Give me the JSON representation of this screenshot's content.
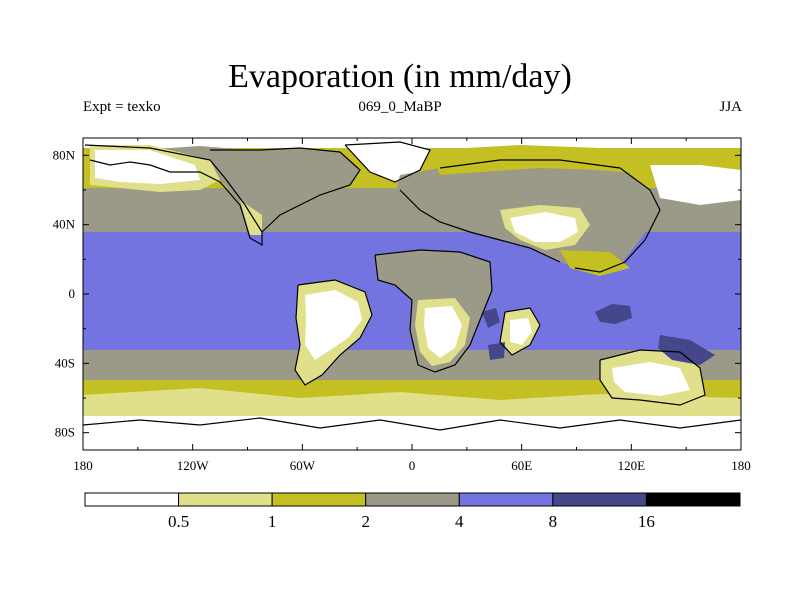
{
  "title": "Evaporation (in mm/day)",
  "subtitle_left": "Expt = texko",
  "subtitle_center": "069_0_MaBP",
  "subtitle_right": "JJA",
  "colors": {
    "lt05": "#ffffff",
    "b05_1": "#e0df8a",
    "b1_2": "#c4c024",
    "b2_4": "#9b9a89",
    "b4_8": "#7474e0",
    "b8_16": "#45478a",
    "gt16": "#000000"
  },
  "chart_data": {
    "type": "heatmap",
    "x_ticks": [
      "180",
      "120W",
      "60W",
      "0",
      "60E",
      "120E",
      "180"
    ],
    "y_ticks": [
      "80N",
      "40N",
      "0",
      "40S",
      "80S"
    ],
    "x_range": [
      -180,
      180
    ],
    "y_range": [
      -90,
      90
    ],
    "colorbar": {
      "levels": [
        "0.5",
        "1",
        "2",
        "4",
        "8",
        "16"
      ],
      "colors": [
        "#ffffff",
        "#e0df8a",
        "#c4c024",
        "#9b9a89",
        "#7474e0",
        "#45478a",
        "#000000"
      ]
    }
  }
}
